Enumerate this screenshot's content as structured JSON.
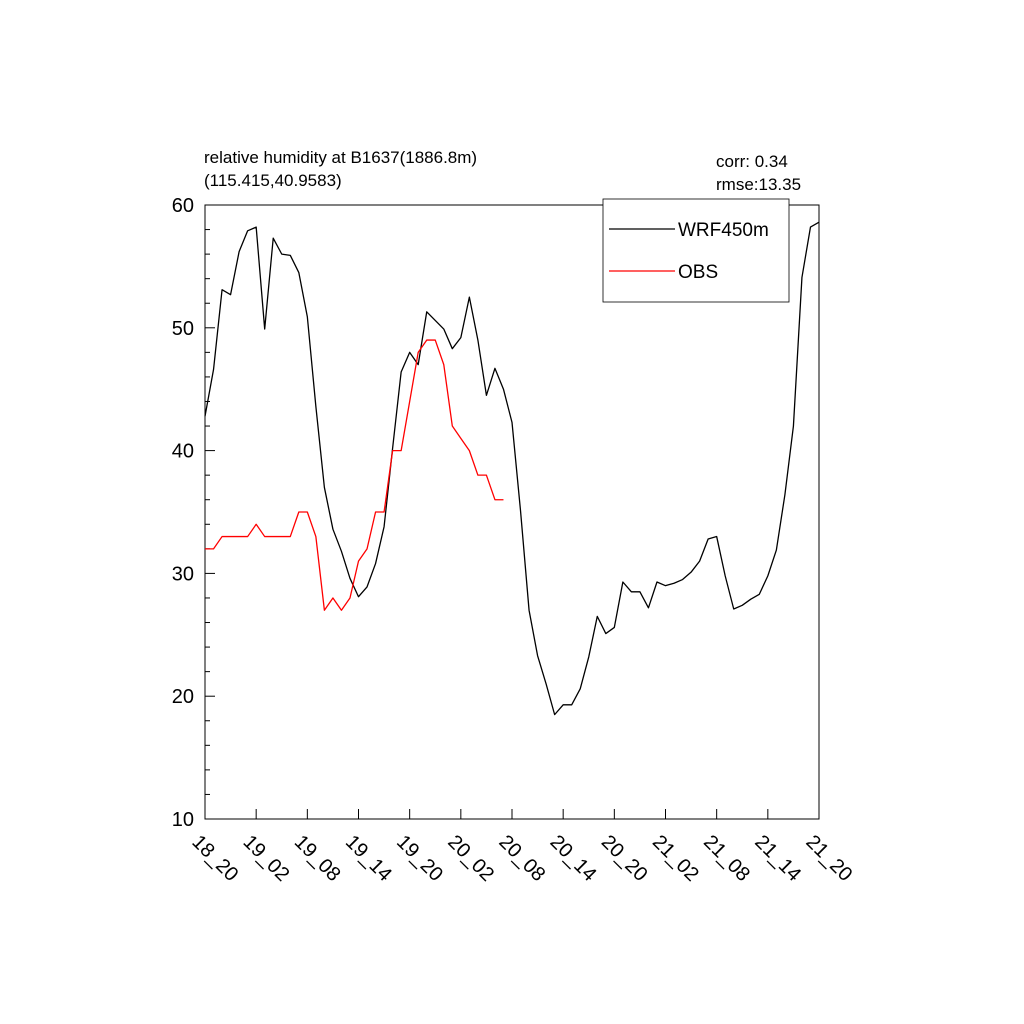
{
  "title": {
    "line1": "relative humidity at B1637(1886.8m)",
    "line2": "(115.415,40.9583)"
  },
  "stats": {
    "corr": "corr:  0.34",
    "rmse": "rmse:13.35"
  },
  "chart_data": {
    "type": "line",
    "x_unit": "hours",
    "xlim": [
      0,
      72
    ],
    "ylim": [
      10,
      60
    ],
    "y_ticks": [
      10,
      20,
      30,
      40,
      50,
      60
    ],
    "y_minor_step": 2,
    "x_tick_step": 6,
    "x_tick_labels": [
      "18_20",
      "19_02",
      "19_08",
      "19_14",
      "19_20",
      "20_02",
      "20_08",
      "20_14",
      "20_20",
      "21_02",
      "21_08",
      "21_14",
      "21_20"
    ],
    "grid": false,
    "legend_position": "top-right",
    "series": [
      {
        "name": "WRF450m",
        "color": "#000000",
        "x": [
          0,
          1,
          2,
          3,
          4,
          5,
          6,
          7,
          8,
          9,
          10,
          11,
          12,
          13,
          14,
          15,
          16,
          17,
          18,
          19,
          20,
          21,
          22,
          23,
          24,
          25,
          26,
          27,
          28,
          29,
          30,
          31,
          32,
          33,
          34,
          35,
          36,
          37,
          38,
          39,
          40,
          41,
          42,
          43,
          44,
          45,
          46,
          47,
          48,
          49,
          50,
          51,
          52,
          53,
          54,
          55,
          56,
          57,
          58,
          59,
          60,
          61,
          62,
          63,
          64,
          65,
          66,
          67,
          68,
          69,
          70,
          71,
          72
        ],
        "values": [
          42.8,
          46.6,
          53.1,
          52.7,
          56.2,
          57.9,
          58.2,
          49.9,
          57.3,
          56.0,
          55.9,
          54.5,
          50.9,
          43.6,
          37.0,
          33.6,
          31.8,
          29.6,
          28.1,
          28.9,
          30.8,
          33.8,
          40.2,
          46.4,
          48.0,
          47.0,
          51.3,
          50.6,
          49.9,
          48.3,
          49.2,
          52.5,
          49.0,
          44.5,
          46.7,
          45.0,
          42.3,
          35.1,
          27.0,
          23.3,
          21.0,
          18.5,
          19.3,
          19.3,
          20.6,
          23.2,
          26.5,
          25.1,
          25.6,
          29.3,
          28.5,
          28.5,
          27.2,
          29.3,
          29.0,
          29.2,
          29.5,
          30.1,
          31.0,
          32.8,
          33.0,
          29.8,
          27.1,
          27.4,
          27.9,
          28.3,
          29.8,
          31.9,
          36.4,
          42.0,
          54.1,
          58.2,
          58.6
        ]
      },
      {
        "name": "OBS",
        "color": "#ff0000",
        "x": [
          0,
          1,
          2,
          3,
          4,
          5,
          6,
          7,
          8,
          9,
          10,
          11,
          12,
          13,
          14,
          15,
          16,
          17,
          18,
          19,
          20,
          21,
          22,
          23,
          24,
          25,
          26,
          27,
          28,
          29,
          30,
          31,
          32,
          33,
          34,
          35
        ],
        "values": [
          32,
          32,
          33,
          33,
          33,
          33,
          34,
          33,
          33,
          33,
          33,
          35,
          35,
          33,
          27,
          28,
          27,
          28,
          31,
          32,
          35,
          35,
          40,
          40,
          44,
          48,
          49,
          49,
          47,
          42,
          41,
          40,
          38,
          38,
          36,
          36
        ]
      }
    ]
  }
}
